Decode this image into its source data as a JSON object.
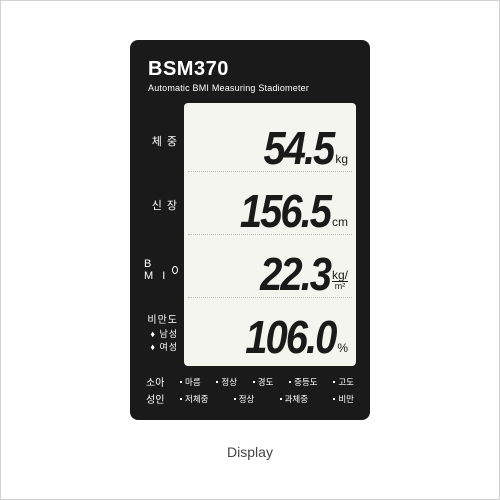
{
  "header": {
    "model": "BSM370",
    "subtitle": "Automatic BMI Measuring Stadiometer"
  },
  "side_labels": {
    "weight": "체 중",
    "height": "신 장",
    "bmi": "B M I",
    "obesity": "비만도",
    "male": "남성",
    "female": "여성"
  },
  "readings": {
    "weight": {
      "value": "54.5",
      "unit": "kg"
    },
    "height": {
      "value": "156.5",
      "unit": "cm"
    },
    "bmi": {
      "value": "22.3",
      "unit_top": "kg/",
      "unit_bottom": "m²"
    },
    "obesity": {
      "value": "106.0",
      "unit": "%"
    }
  },
  "footer": {
    "child": {
      "label": "소아",
      "items": [
        "마름",
        "정상",
        "경도",
        "중등도",
        "고도"
      ]
    },
    "adult": {
      "label": "성인",
      "items": [
        "저체중",
        "정상",
        "과체중",
        "비만"
      ]
    }
  },
  "caption": "Display",
  "colors": {
    "device_bg": "#1a1a1a",
    "lcd_bg": "#f5f5f0",
    "text_light": "#ffffff",
    "text_dark": "#1a1a1a"
  }
}
